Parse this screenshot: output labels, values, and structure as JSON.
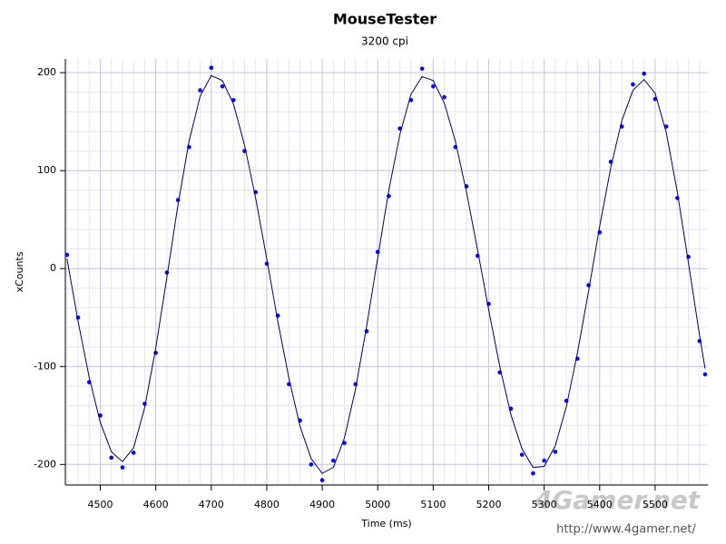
{
  "chart_data": {
    "type": "scatter",
    "title": "MouseTester",
    "subtitle": "3200 cpi",
    "x_label": "Time (ms)",
    "y_label": "xCounts",
    "x": [
      4440,
      4460,
      4480,
      4500,
      4520,
      4540,
      4560,
      4580,
      4600,
      4620,
      4640,
      4660,
      4680,
      4700,
      4720,
      4740,
      4760,
      4780,
      4800,
      4820,
      4840,
      4860,
      4880,
      4900,
      4920,
      4940,
      4960,
      4980,
      5000,
      5020,
      5040,
      5060,
      5080,
      5100,
      5120,
      5140,
      5160,
      5180,
      5200,
      5220,
      5240,
      5260,
      5280,
      5300,
      5320,
      5340,
      5360,
      5380,
      5400,
      5420,
      5440,
      5460,
      5480,
      5500,
      5520,
      5540,
      5560,
      5580,
      5590
    ],
    "series": [
      {
        "color": "#0000ff",
        "mode": "markers",
        "values": [
          14,
          -50,
          -116,
          -150,
          -193,
          -203,
          -188,
          -138,
          -86,
          -4,
          70,
          124,
          182,
          205,
          186,
          172,
          120,
          78,
          5,
          -48,
          -118,
          -155,
          -200,
          -216,
          -196,
          -178,
          -118,
          -64,
          17,
          74,
          143,
          172,
          204,
          186,
          175,
          124,
          84,
          13,
          -36,
          -106,
          -143,
          -190,
          -209,
          -196,
          -187,
          -135,
          -92,
          -17,
          37,
          109,
          145,
          188,
          199,
          173,
          145,
          72,
          12,
          -74,
          -108
        ]
      },
      {
        "color": "#000066",
        "mode": "line",
        "values": [
          10,
          -54,
          -111,
          -157,
          -187,
          -197,
          -183,
          -142,
          -81,
          -9,
          65,
          130,
          176,
          197,
          192,
          168,
          126,
          72,
          10,
          -54,
          -112,
          -161,
          -194,
          -209,
          -203,
          -173,
          -123,
          -59,
          11,
          80,
          137,
          178,
          196,
          192,
          169,
          130,
          78,
          19,
          -42,
          -100,
          -149,
          -184,
          -203,
          -202,
          -181,
          -141,
          -86,
          -23,
          43,
          103,
          151,
          182,
          193,
          179,
          139,
          78,
          6,
          -68,
          -102
        ]
      }
    ],
    "xlim": [
      4437,
      5595
    ],
    "ylim": [
      -221,
      214
    ],
    "xticks": [
      4500,
      4600,
      4700,
      4800,
      4900,
      5000,
      5100,
      5200,
      5300,
      5400,
      5500
    ],
    "yticks": [
      -200,
      -100,
      0,
      100,
      200
    ],
    "grid": true
  },
  "watermark": {
    "logo": "4Gamer.net",
    "url": "http://www.4gamer.net/"
  }
}
